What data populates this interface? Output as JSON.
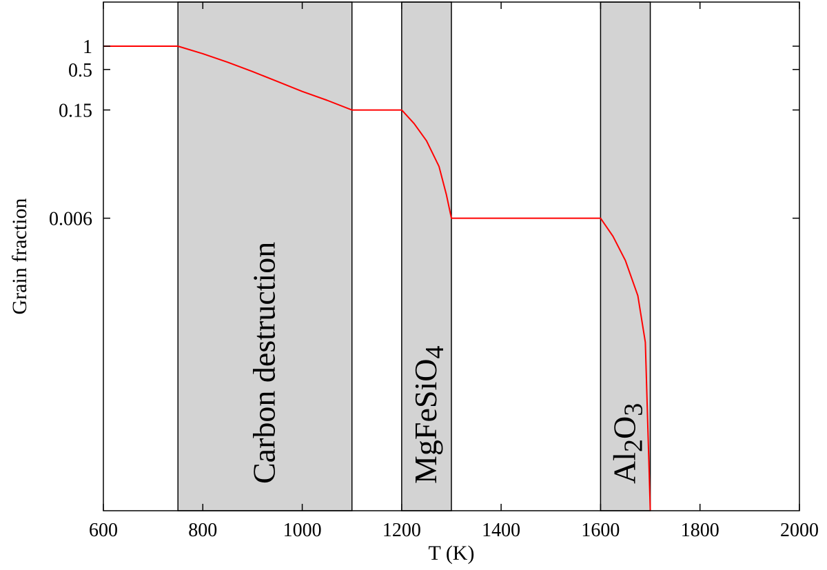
{
  "chart_data": {
    "type": "line",
    "xlabel": "T (K)",
    "ylabel": "Grain fraction",
    "xlim": [
      600,
      2000
    ],
    "x_ticks": [
      600,
      800,
      1000,
      1200,
      1400,
      1600,
      1800,
      2000
    ],
    "y_ticks": [
      {
        "value": 1,
        "label": "1"
      },
      {
        "value": 0.5,
        "label": "0.5"
      },
      {
        "value": 0.15,
        "label": "0.15"
      },
      {
        "value": 0.006,
        "label": "0.006"
      }
    ],
    "grid": false,
    "line_color": "#ff0000",
    "band_color": "#d3d3d3",
    "bands": [
      {
        "x_start": 750,
        "x_end": 1100,
        "label": "Carbon destruction",
        "label_parts": [
          {
            "text": "Carbon destruction"
          }
        ]
      },
      {
        "x_start": 1200,
        "x_end": 1300,
        "label": "MgFeSiO4",
        "label_parts": [
          {
            "text": "MgFeSiO"
          },
          {
            "text": "4",
            "sub": true
          }
        ]
      },
      {
        "x_start": 1600,
        "x_end": 1700,
        "label": "Al2O3",
        "label_parts": [
          {
            "text": "Al"
          },
          {
            "text": "2",
            "sub": true
          },
          {
            "text": "O"
          },
          {
            "text": "3",
            "sub": true
          }
        ]
      }
    ],
    "series": [
      {
        "x": [
          600,
          750,
          800,
          850,
          900,
          950,
          1000,
          1050,
          1100,
          1200,
          1225,
          1250,
          1275,
          1290,
          1300,
          1600,
          1625,
          1650,
          1675,
          1690,
          1700
        ],
        "y": [
          1,
          1,
          0.8,
          0.62,
          0.47,
          0.35,
          0.26,
          0.2,
          0.15,
          0.15,
          0.1,
          0.06,
          0.028,
          0.012,
          0.006,
          0.006,
          0.0035,
          0.0017,
          0.0006,
          0.00015,
          1e-06
        ]
      }
    ]
  }
}
